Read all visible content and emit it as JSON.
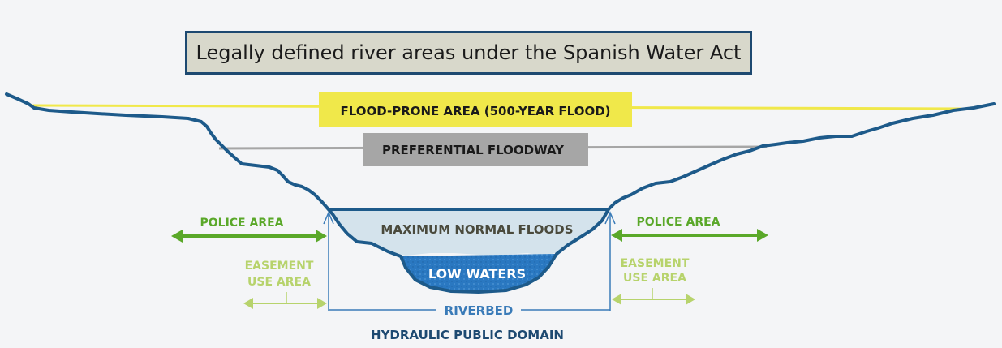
{
  "title": "Legally defined river areas under the Spanish Water Act",
  "labels": {
    "flood_prone": "FLOOD-PRONE AREA (500-YEAR FLOOD)",
    "floodway": "PREFERENTIAL FLOODWAY",
    "max_normal_floods": "MAXIMUM NORMAL FLOODS",
    "low_waters": "LOW WATERS",
    "police_area_left": "POLICE AREA",
    "police_area_right": "POLICE AREA",
    "easement_left_1": "EASEMENT",
    "easement_left_2": "USE AREA",
    "easement_right_1": "EASEMENT",
    "easement_right_2": "USE AREA",
    "riverbed": "RIVERBED",
    "hydraulic_domain": "HYDRAULIC PUBLIC DOMAIN"
  },
  "colors": {
    "terrain": "#1d5a8a",
    "flood_prone": "#f0e84a",
    "floodway": "#a6a6a6",
    "max_floods": "#d4e3ec",
    "low_waters": "#2a78c1",
    "police": "#5aa829",
    "easement": "#b7d36c",
    "riverbed": "#3a7bb8",
    "domain": "#1d4971"
  }
}
